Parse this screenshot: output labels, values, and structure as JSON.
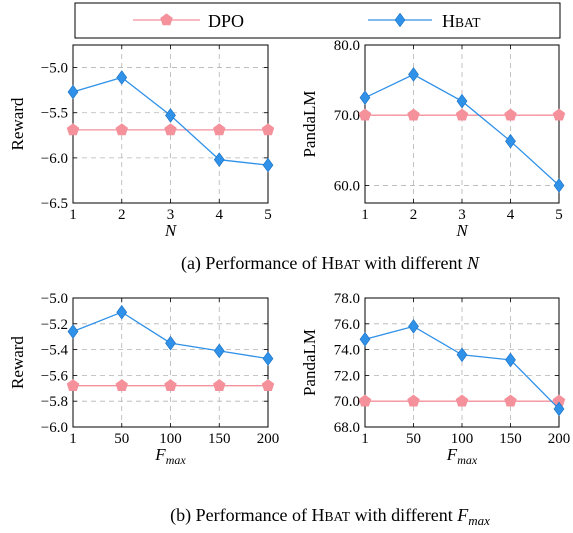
{
  "legend": {
    "items": [
      {
        "label": "DPO",
        "color": "#f4919b",
        "marker": "pentagon"
      },
      {
        "label": "HBAT",
        "color": "#2f91e8",
        "marker": "diamond"
      }
    ]
  },
  "captions": [
    {
      "prefix": "(a) Performance of H",
      "smallcaps": "BAT",
      "middle": " with different ",
      "var": "N",
      "sub": ""
    },
    {
      "prefix": "(b) Performance of H",
      "smallcaps": "BAT",
      "middle": " with different ",
      "var": "F",
      "sub": "max"
    }
  ],
  "chart_data": [
    {
      "type": "line",
      "categories": [
        "1",
        "2",
        "3",
        "4",
        "5"
      ],
      "xlabel": "N",
      "xlabel_sub": "",
      "ylabel": "Reward",
      "ylim": [
        -6.5,
        -4.75
      ],
      "yticks": [
        -5.0,
        -5.5,
        -6.0,
        -6.5
      ],
      "ytick_labels": [
        "−5.0",
        "−5.5",
        "−6.0",
        "−6.5"
      ],
      "grid": true,
      "series": [
        {
          "name": "DPO",
          "values": [
            -5.69,
            -5.69,
            -5.69,
            -5.69,
            -5.69
          ]
        },
        {
          "name": "HBAT",
          "values": [
            -5.27,
            -5.11,
            -5.53,
            -6.02,
            -6.08
          ]
        }
      ]
    },
    {
      "type": "line",
      "categories": [
        "1",
        "2",
        "3",
        "4",
        "5"
      ],
      "xlabel": "N",
      "xlabel_sub": "",
      "ylabel": "PandaLM",
      "ylim": [
        57.5,
        80.0
      ],
      "yticks": [
        60.0,
        70.0,
        80.0
      ],
      "ytick_labels": [
        "60.0",
        "70.0",
        "80.0"
      ],
      "grid": true,
      "series": [
        {
          "name": "DPO",
          "values": [
            70.0,
            70.0,
            70.0,
            70.0,
            70.0
          ]
        },
        {
          "name": "HBAT",
          "values": [
            72.5,
            75.8,
            72.0,
            66.3,
            60.0
          ]
        }
      ]
    },
    {
      "type": "line",
      "categories": [
        "1",
        "50",
        "100",
        "150",
        "200"
      ],
      "xlabel": "F",
      "xlabel_sub": "max",
      "ylabel": "Reward",
      "ylim": [
        -6.0,
        -5.0
      ],
      "yticks": [
        -5.0,
        -5.2,
        -5.4,
        -5.6,
        -5.8,
        -6.0
      ],
      "ytick_labels": [
        "−5.0",
        "−5.2",
        "−5.4",
        "−5.6",
        "−5.8",
        "−6.0"
      ],
      "grid": true,
      "series": [
        {
          "name": "DPO",
          "values": [
            -5.68,
            -5.68,
            -5.68,
            -5.68,
            -5.68
          ]
        },
        {
          "name": "HBAT",
          "values": [
            -5.26,
            -5.11,
            -5.35,
            -5.41,
            -5.47
          ]
        }
      ]
    },
    {
      "type": "line",
      "categories": [
        "1",
        "50",
        "100",
        "150",
        "200"
      ],
      "xlabel": "F",
      "xlabel_sub": "max",
      "ylabel": "PandaLM",
      "ylim": [
        68.0,
        78.0
      ],
      "yticks": [
        68.0,
        70.0,
        72.0,
        74.0,
        76.0,
        78.0
      ],
      "ytick_labels": [
        "68.0",
        "70.0",
        "72.0",
        "74.0",
        "76.0",
        "78.0"
      ],
      "grid": true,
      "series": [
        {
          "name": "DPO",
          "values": [
            70.0,
            70.0,
            70.0,
            70.0,
            70.0
          ]
        },
        {
          "name": "HBAT",
          "values": [
            74.8,
            75.8,
            73.6,
            73.2,
            69.4
          ]
        }
      ]
    }
  ]
}
